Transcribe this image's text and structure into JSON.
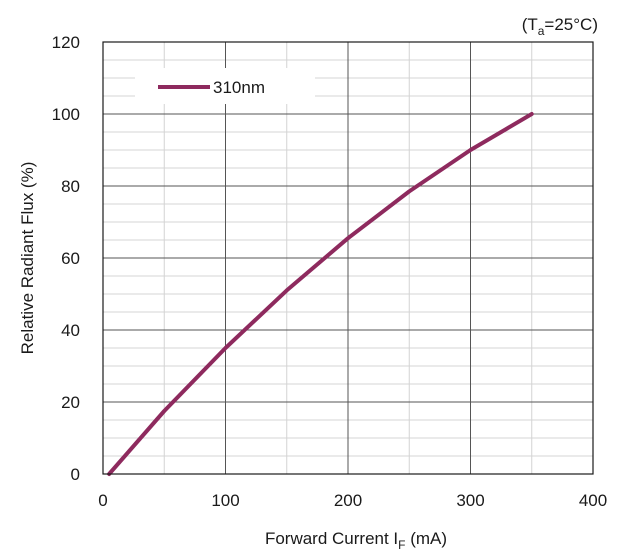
{
  "chart_data": {
    "type": "line",
    "condition": {
      "prefix": "(T",
      "sub": "a",
      "suffix": "=25°C)"
    },
    "xlabel": {
      "main": "Forward Current I",
      "sub": "F",
      "tail": " (mA)"
    },
    "ylabel": "Relative Radiant Flux (%)",
    "xlim": [
      0,
      400
    ],
    "ylim": [
      0,
      120
    ],
    "xticks": [
      "0",
      "100",
      "200",
      "300",
      "400"
    ],
    "yticks": [
      "0",
      "20",
      "40",
      "60",
      "80",
      "100",
      "120"
    ],
    "grid": true,
    "legend_position": "top-left",
    "series": [
      {
        "name": "310nm",
        "color": "#8e2a5e",
        "x": [
          5,
          50,
          100,
          150,
          200,
          250,
          300,
          350
        ],
        "y": [
          0,
          17.5,
          35,
          51,
          65.5,
          78.5,
          90,
          100
        ]
      }
    ]
  }
}
